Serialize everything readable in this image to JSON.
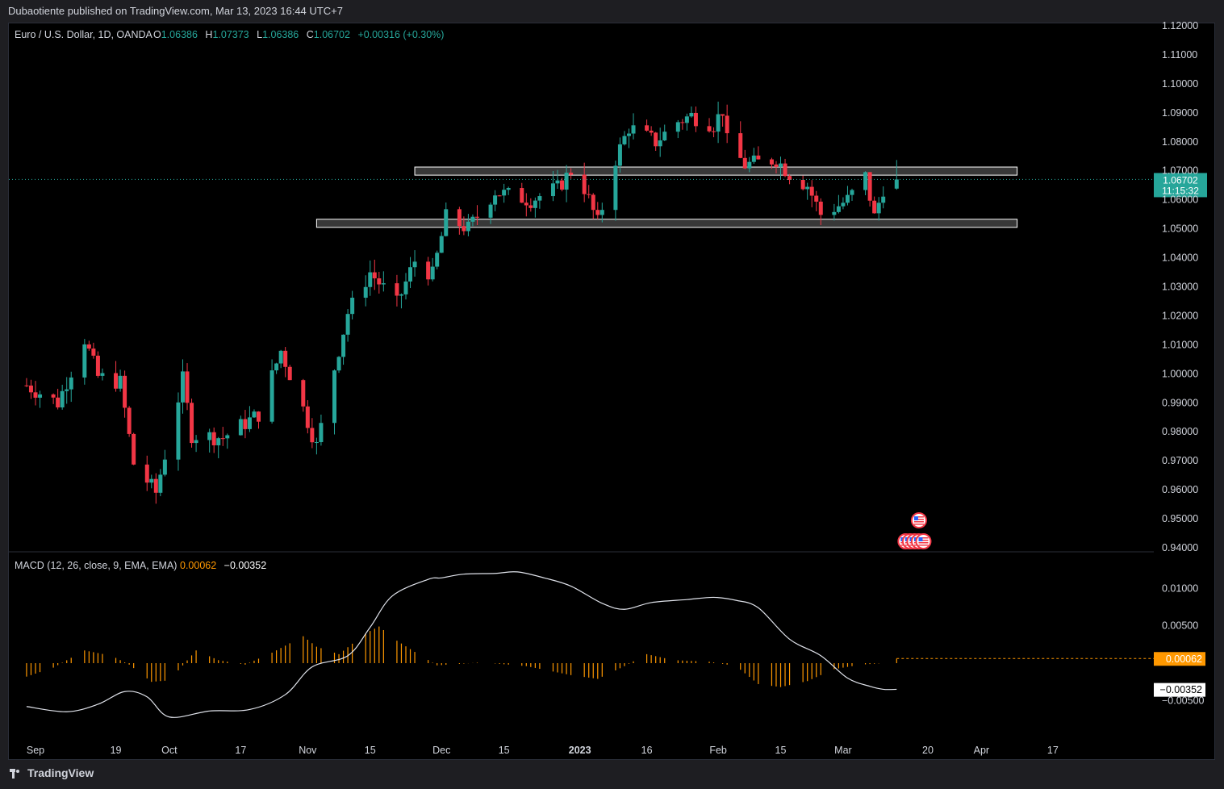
{
  "header": {
    "publisher": "Dubaotiente published on TradingView.com, Mar 13, 2023 16:44 UTC+7"
  },
  "footer": {
    "brand": "TradingView",
    "logo_icon": "tradingview-logo-icon"
  },
  "colors": {
    "up": "#26a69a",
    "down": "#f23645",
    "macd": "#e0e3eb",
    "hist": "#ff9800",
    "text": "#d1d4dc",
    "muted": "#b2b5be"
  },
  "chart_data": [
    {
      "type": "candlestick",
      "legend": {
        "symbol": "Euro / U.S. Dollar, 1D, OANDA",
        "o_label": "O",
        "o": "1.06386",
        "h_label": "H",
        "h": "1.07373",
        "l_label": "L",
        "l": "1.06386",
        "c_label": "C",
        "c": "1.06702",
        "change": "+0.00316 (+0.30%)"
      },
      "ylim": [
        0.94,
        1.12
      ],
      "y_ticks": [
        "1.12000",
        "1.11000",
        "1.10000",
        "1.09000",
        "1.08000",
        "1.07000",
        "1.06000",
        "1.05000",
        "1.04000",
        "1.03000",
        "1.02000",
        "1.01000",
        "1.00000",
        "0.99000",
        "0.98000",
        "0.97000",
        "0.96000",
        "0.95000",
        "0.94000"
      ],
      "x_ticks": [
        {
          "date": "2022-09-01",
          "label": "Sep"
        },
        {
          "date": "2022-09-19",
          "label": "19"
        },
        {
          "date": "2022-10-01",
          "label": "Oct"
        },
        {
          "date": "2022-10-17",
          "label": "17"
        },
        {
          "date": "2022-11-01",
          "label": "Nov"
        },
        {
          "date": "2022-11-15",
          "label": "15"
        },
        {
          "date": "2022-12-01",
          "label": "Dec"
        },
        {
          "date": "2022-12-15",
          "label": "15"
        },
        {
          "date": "2023-01-01",
          "label": "2023",
          "bold": true
        },
        {
          "date": "2023-01-16",
          "label": "16"
        },
        {
          "date": "2023-02-01",
          "label": "Feb"
        },
        {
          "date": "2023-02-15",
          "label": "15"
        },
        {
          "date": "2023-03-01",
          "label": "Mar"
        },
        {
          "date": "2023-03-20",
          "label": "20"
        },
        {
          "date": "2023-04-01",
          "label": "Apr"
        },
        {
          "date": "2023-04-17",
          "label": "17"
        }
      ],
      "price_label": {
        "value": "1.06702",
        "countdown": "11:15:32",
        "y": 1.06702
      },
      "zones": [
        {
          "from": "2022-11-25",
          "to": "2023-04-09",
          "low": 1.0685,
          "high": 1.0713
        },
        {
          "from": "2022-11-03",
          "to": "2023-04-09",
          "low": 1.0505,
          "high": 1.0533
        }
      ],
      "event_flags": [
        {
          "date": "2023-03-18",
          "row": 1
        },
        {
          "date": "2023-03-15",
          "row": 2
        },
        {
          "date": "2023-03-16",
          "row": 2
        },
        {
          "date": "2023-03-17",
          "row": 2
        },
        {
          "date": "2023-03-18",
          "row": 2
        },
        {
          "date": "2023-03-19",
          "row": 2
        }
      ],
      "key_points": [
        {
          "date": "2022-08-30",
          "close": 0.996
        },
        {
          "date": "2022-09-06",
          "close": 0.99
        },
        {
          "date": "2022-09-12",
          "close": 1.012
        },
        {
          "date": "2022-09-15",
          "close": 0.999
        },
        {
          "date": "2022-09-20",
          "close": 0.997
        },
        {
          "date": "2022-09-23",
          "close": 0.969
        },
        {
          "date": "2022-09-28",
          "close": 0.959
        },
        {
          "date": "2022-10-04",
          "close": 0.998
        },
        {
          "date": "2022-10-06",
          "close": 0.979
        },
        {
          "date": "2022-10-13",
          "close": 0.978
        },
        {
          "date": "2022-10-21",
          "close": 0.986
        },
        {
          "date": "2022-10-26",
          "close": 1.008
        },
        {
          "date": "2022-10-31",
          "close": 0.988
        },
        {
          "date": "2022-11-03",
          "close": 0.975
        },
        {
          "date": "2022-11-07",
          "close": 1.002
        },
        {
          "date": "2022-11-10",
          "close": 1.021
        },
        {
          "date": "2022-11-15",
          "close": 1.035
        },
        {
          "date": "2022-11-21",
          "close": 1.024
        },
        {
          "date": "2022-11-25",
          "close": 1.039
        },
        {
          "date": "2022-11-29",
          "close": 1.034
        },
        {
          "date": "2022-12-02",
          "close": 1.054
        },
        {
          "date": "2022-12-07",
          "close": 1.05
        },
        {
          "date": "2022-12-13",
          "close": 1.063
        },
        {
          "date": "2022-12-15",
          "close": 1.062
        },
        {
          "date": "2022-12-21",
          "close": 1.06
        },
        {
          "date": "2022-12-27",
          "close": 1.064
        },
        {
          "date": "2022-12-30",
          "close": 1.07
        },
        {
          "date": "2023-01-02",
          "close": 1.064
        },
        {
          "date": "2023-01-05",
          "close": 1.052
        },
        {
          "date": "2023-01-09",
          "close": 1.074
        },
        {
          "date": "2023-01-12",
          "close": 1.085
        },
        {
          "date": "2023-01-18",
          "close": 1.08
        },
        {
          "date": "2023-01-23",
          "close": 1.087
        },
        {
          "date": "2023-01-26",
          "close": 1.089
        },
        {
          "date": "2023-01-31",
          "close": 1.086
        },
        {
          "date": "2023-02-02",
          "close": 1.091
        },
        {
          "date": "2023-02-03",
          "close": 1.08
        },
        {
          "date": "2023-02-07",
          "close": 1.072
        },
        {
          "date": "2023-02-14",
          "close": 1.074
        },
        {
          "date": "2023-02-17",
          "close": 1.069
        },
        {
          "date": "2023-02-21",
          "close": 1.065
        },
        {
          "date": "2023-02-24",
          "close": 1.055
        },
        {
          "date": "2023-02-28",
          "close": 1.058
        },
        {
          "date": "2023-03-02",
          "close": 1.06
        },
        {
          "date": "2023-03-06",
          "close": 1.068
        },
        {
          "date": "2023-03-08",
          "close": 1.054
        },
        {
          "date": "2023-03-10",
          "close": 1.064
        },
        {
          "date": "2023-03-13",
          "close": 1.06702
        }
      ]
    },
    {
      "type": "line+histogram",
      "legend": {
        "title": "MACD (12, 26, close, 9, EMA, EMA)",
        "hist_value": "0.00062",
        "macd_value": "−0.00352"
      },
      "ylim": [
        -0.0071,
        0.0124
      ],
      "y_ticks": [
        "0.01000",
        "0.00500",
        "−0.00500"
      ],
      "value_labels": [
        {
          "value": 0.00062,
          "text": "0.00062",
          "style": "hist"
        },
        {
          "value": -0.00352,
          "text": "−0.00352",
          "style": "macd"
        }
      ],
      "macd_points": [
        {
          "date": "2022-08-30",
          "value": -0.0058
        },
        {
          "date": "2022-09-08",
          "value": -0.0065
        },
        {
          "date": "2022-09-15",
          "value": -0.0055
        },
        {
          "date": "2022-09-21",
          "value": -0.0038
        },
        {
          "date": "2022-09-26",
          "value": -0.0045
        },
        {
          "date": "2022-10-01",
          "value": -0.0072
        },
        {
          "date": "2022-10-10",
          "value": -0.0064
        },
        {
          "date": "2022-10-19",
          "value": -0.0062
        },
        {
          "date": "2022-10-27",
          "value": -0.0042
        },
        {
          "date": "2022-11-02",
          "value": -0.0005
        },
        {
          "date": "2022-11-10",
          "value": 0.001
        },
        {
          "date": "2022-11-15",
          "value": 0.0048
        },
        {
          "date": "2022-11-20",
          "value": 0.009
        },
        {
          "date": "2022-11-28",
          "value": 0.0112
        },
        {
          "date": "2022-12-01",
          "value": 0.0114
        },
        {
          "date": "2022-12-06",
          "value": 0.0119
        },
        {
          "date": "2022-12-13",
          "value": 0.012
        },
        {
          "date": "2022-12-18",
          "value": 0.0122
        },
        {
          "date": "2022-12-24",
          "value": 0.0114
        },
        {
          "date": "2022-12-30",
          "value": 0.0103
        },
        {
          "date": "2023-01-06",
          "value": 0.008
        },
        {
          "date": "2023-01-11",
          "value": 0.0072
        },
        {
          "date": "2023-01-17",
          "value": 0.0081
        },
        {
          "date": "2023-01-25",
          "value": 0.0085
        },
        {
          "date": "2023-01-31",
          "value": 0.0088
        },
        {
          "date": "2023-02-05",
          "value": 0.0084
        },
        {
          "date": "2023-02-10",
          "value": 0.0074
        },
        {
          "date": "2023-02-17",
          "value": 0.0032
        },
        {
          "date": "2023-02-24",
          "value": 0.001
        },
        {
          "date": "2023-03-02",
          "value": -0.002
        },
        {
          "date": "2023-03-07",
          "value": -0.0031
        },
        {
          "date": "2023-03-10",
          "value": -0.0035
        },
        {
          "date": "2023-03-13",
          "value": -0.0035
        }
      ],
      "histogram_points": [
        {
          "date": "2022-08-30",
          "value": -0.0018
        },
        {
          "date": "2022-09-05",
          "value": -0.0006
        },
        {
          "date": "2022-09-12",
          "value": 0.0017
        },
        {
          "date": "2022-09-18",
          "value": 0.001
        },
        {
          "date": "2022-09-22",
          "value": -0.0002
        },
        {
          "date": "2022-09-27",
          "value": -0.0025
        },
        {
          "date": "2022-10-01",
          "value": -0.0023
        },
        {
          "date": "2022-10-07",
          "value": 0.0017
        },
        {
          "date": "2022-10-12",
          "value": 0.0004
        },
        {
          "date": "2022-10-18",
          "value": -0.0002
        },
        {
          "date": "2022-10-24",
          "value": 0.0014
        },
        {
          "date": "2022-10-31",
          "value": 0.0036
        },
        {
          "date": "2022-11-03",
          "value": 0.0022
        },
        {
          "date": "2022-11-08",
          "value": 0.0012
        },
        {
          "date": "2022-11-14",
          "value": 0.004
        },
        {
          "date": "2022-11-17",
          "value": 0.0049
        },
        {
          "date": "2022-11-21",
          "value": 0.003
        },
        {
          "date": "2022-11-25",
          "value": 0.0015
        },
        {
          "date": "2022-11-30",
          "value": -0.0003
        },
        {
          "date": "2022-12-10",
          "value": 0.0001
        },
        {
          "date": "2022-12-20",
          "value": -0.0004
        },
        {
          "date": "2022-12-30",
          "value": -0.0016
        },
        {
          "date": "2023-01-05",
          "value": -0.0021
        },
        {
          "date": "2023-01-11",
          "value": -0.0004
        },
        {
          "date": "2023-01-16",
          "value": 0.0012
        },
        {
          "date": "2023-01-22",
          "value": 0.0004
        },
        {
          "date": "2023-01-30",
          "value": 0.0002
        },
        {
          "date": "2023-02-05",
          "value": -0.0004
        },
        {
          "date": "2023-02-10",
          "value": -0.0028
        },
        {
          "date": "2023-02-15",
          "value": -0.0032
        },
        {
          "date": "2023-02-21",
          "value": -0.0024
        },
        {
          "date": "2023-02-27",
          "value": -0.0008
        },
        {
          "date": "2023-03-05",
          "value": -0.0002
        },
        {
          "date": "2023-03-10",
          "value": 0.0
        },
        {
          "date": "2023-03-13",
          "value": 0.0006
        }
      ]
    }
  ]
}
